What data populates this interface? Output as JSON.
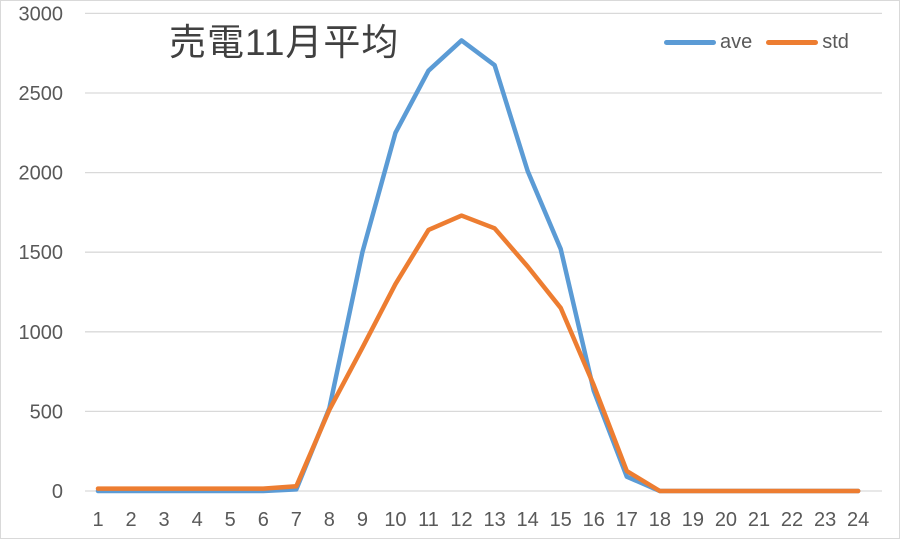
{
  "title": "売電11月平均",
  "colors": {
    "ave": "#5B9BD5",
    "std": "#ED7D31",
    "gridline": "#D9D9D9",
    "tick_text": "#595959",
    "title_text": "#404040",
    "background": "#FFFFFF"
  },
  "legend": {
    "items": [
      {
        "label": "ave",
        "color": "#5B9BD5"
      },
      {
        "label": "std",
        "color": "#ED7D31"
      }
    ]
  },
  "chart_data": {
    "type": "line",
    "title": "売電11月平均",
    "xlabel": "",
    "ylabel": "",
    "categories": [
      1,
      2,
      3,
      4,
      5,
      6,
      7,
      8,
      9,
      10,
      11,
      12,
      13,
      14,
      15,
      16,
      17,
      18,
      19,
      20,
      21,
      22,
      23,
      24
    ],
    "series": [
      {
        "name": "ave",
        "color": "#5B9BD5",
        "values": [
          0,
          0,
          0,
          0,
          0,
          0,
          10,
          520,
          1500,
          2250,
          2640,
          2830,
          2675,
          2010,
          1520,
          630,
          90,
          0,
          0,
          0,
          0,
          0,
          0,
          0
        ]
      },
      {
        "name": "std",
        "color": "#ED7D31",
        "values": [
          15,
          15,
          15,
          15,
          15,
          15,
          30,
          510,
          900,
          1300,
          1640,
          1730,
          1650,
          1410,
          1150,
          665,
          125,
          0,
          0,
          0,
          0,
          0,
          0,
          0
        ]
      }
    ],
    "ylim": [
      0,
      3000
    ],
    "y_ticks": [
      0,
      500,
      1000,
      1500,
      2000,
      2500,
      3000
    ],
    "grid": true,
    "legend_position": "top-right"
  }
}
